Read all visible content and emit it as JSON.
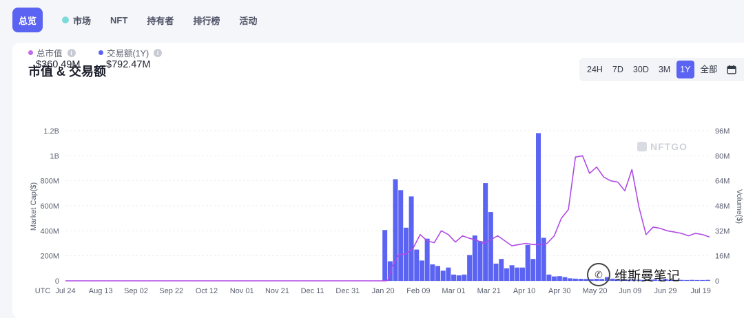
{
  "nav": {
    "items": [
      "总览",
      "市场",
      "NFT",
      "持有者",
      "排行榜",
      "活动"
    ],
    "active_index": 0
  },
  "card": {
    "title": "市值 & 交易额",
    "ranges": [
      "24H",
      "7D",
      "30D",
      "3M",
      "1Y",
      "全部"
    ],
    "active_range": "1Y"
  },
  "legend": {
    "market_cap_label": "总市值",
    "market_cap_value": "$360.49M",
    "volume_label": "交易额(1Y)",
    "volume_value": "$792.47M"
  },
  "watermark": {
    "brand": "NFTGO",
    "author": "维斯曼笔记"
  },
  "colors": {
    "accent": "#5b63f2",
    "market_cap_line": "#b04ae6",
    "volume_bar": "#5b63f2",
    "dot_market": "#c46be6",
    "dot_volume": "#5b63f2"
  },
  "chart_data": {
    "type": "bar",
    "x_axis_start_label": "UTC",
    "x_ticks": [
      "Jul 24",
      "Aug 13",
      "Sep 02",
      "Sep 22",
      "Oct 12",
      "Nov 01",
      "Nov 21",
      "Dec 11",
      "Dec 31",
      "Jan 20",
      "Feb 09",
      "Mar 01",
      "Mar 21",
      "Apr 10",
      "Apr 30",
      "May 20",
      "Jun 09",
      "Jun 29",
      "Jul 19"
    ],
    "ylabel_left": "Market Cap($)",
    "ylabel_right": "Volume($)",
    "ylim_left": [
      0,
      1200000000
    ],
    "ylim_right": [
      0,
      96000000
    ],
    "yticks_left": [
      "0",
      "200M",
      "400M",
      "600M",
      "800M",
      "1B",
      "1.2B"
    ],
    "yticks_right": [
      "0",
      "16M",
      "32M",
      "48M",
      "64M",
      "80M",
      "96M"
    ],
    "grid": true,
    "series": [
      {
        "name": "Market Cap",
        "kind": "line",
        "axis": "left",
        "values": [
          [
            0,
            0
          ],
          [
            1,
            0
          ],
          [
            2,
            0
          ],
          [
            3,
            0
          ],
          [
            4,
            0
          ],
          [
            5,
            0
          ],
          [
            6,
            0
          ],
          [
            7,
            0
          ],
          [
            8,
            0
          ],
          [
            9,
            0
          ],
          [
            10,
            0
          ],
          [
            11,
            0
          ],
          [
            12,
            0
          ],
          [
            13,
            0
          ],
          [
            14,
            0
          ],
          [
            15,
            0
          ],
          [
            16,
            0
          ],
          [
            17,
            0
          ],
          [
            18,
            0
          ],
          [
            19,
            0
          ],
          [
            20,
            0
          ],
          [
            21,
            0
          ],
          [
            22,
            0
          ],
          [
            23,
            0
          ],
          [
            24,
            0
          ],
          [
            25,
            0
          ],
          [
            26,
            0
          ],
          [
            27,
            0
          ],
          [
            28,
            0
          ],
          [
            29,
            0
          ],
          [
            30,
            0
          ],
          [
            31,
            0
          ],
          [
            32,
            0
          ],
          [
            33,
            0
          ],
          [
            34,
            0
          ],
          [
            35,
            0
          ],
          [
            36,
            0
          ],
          [
            37,
            0
          ],
          [
            38,
            0
          ],
          [
            39,
            0
          ],
          [
            40,
            0
          ],
          [
            41,
            0
          ],
          [
            42,
            0
          ],
          [
            43,
            0
          ],
          [
            44,
            0
          ],
          [
            45,
            0
          ],
          [
            46,
            0
          ],
          [
            47,
            0
          ],
          [
            48,
            0
          ],
          [
            49,
            0
          ],
          [
            50,
            0
          ],
          [
            51,
            0
          ],
          [
            52,
            0
          ],
          [
            53,
            0
          ],
          [
            54,
            0
          ],
          [
            55,
            0
          ],
          [
            56,
            0
          ],
          [
            57,
            0
          ],
          [
            58,
            0
          ],
          [
            59,
            0
          ],
          [
            60,
            0
          ],
          [
            61,
            0
          ],
          [
            62,
            0
          ],
          [
            63,
            0
          ],
          [
            64,
            0
          ],
          [
            65,
            0
          ],
          [
            66,
            0
          ],
          [
            67,
            0
          ],
          [
            68,
            0
          ],
          [
            69,
            0
          ],
          [
            70,
            0
          ],
          [
            71,
            0
          ],
          [
            72,
            0
          ],
          [
            73,
            0
          ],
          [
            74,
            0
          ],
          [
            75,
            0
          ],
          [
            76,
            0
          ],
          [
            77,
            0
          ],
          [
            78,
            0
          ],
          [
            79,
            0
          ],
          [
            80,
            0
          ],
          [
            81,
            0
          ],
          [
            82,
            0
          ],
          [
            83,
            0
          ],
          [
            84,
            0
          ],
          [
            85,
            0
          ],
          [
            86,
            0
          ],
          [
            87,
            0
          ],
          [
            88,
            0
          ],
          [
            89,
            0
          ],
          [
            90,
            0
          ],
          [
            91,
            0
          ],
          [
            92,
            0
          ],
          [
            93,
            0
          ],
          [
            94,
            0
          ],
          [
            95,
            0
          ],
          [
            96,
            0
          ],
          [
            97,
            0
          ],
          [
            98,
            0
          ],
          [
            99,
            0
          ],
          [
            100,
            0
          ],
          [
            101,
            0
          ],
          [
            102,
            0
          ],
          [
            103,
            0
          ],
          [
            104,
            0
          ],
          [
            105,
            0
          ],
          [
            106,
            0
          ],
          [
            107,
            0
          ],
          [
            108,
            0
          ],
          [
            109,
            0
          ],
          [
            110,
            0
          ],
          [
            111,
            0
          ],
          [
            112,
            0
          ],
          [
            113,
            0
          ],
          [
            114,
            0
          ],
          [
            115,
            0
          ],
          [
            116,
            0
          ],
          [
            117,
            0
          ],
          [
            118,
            0
          ],
          [
            119,
            0
          ],
          [
            120,
            0
          ],
          [
            121,
            0
          ],
          [
            122,
            0
          ],
          [
            123,
            0
          ],
          [
            124,
            0
          ],
          [
            125,
            0
          ],
          [
            126,
            0
          ],
          [
            127,
            0
          ],
          [
            128,
            0
          ],
          [
            129,
            0
          ],
          [
            130,
            0
          ],
          [
            131,
            0
          ],
          [
            132,
            0
          ],
          [
            133,
            0
          ],
          [
            134,
            0
          ],
          [
            135,
            0
          ],
          [
            136,
            0
          ],
          [
            137,
            0
          ],
          [
            138,
            0
          ],
          [
            139,
            0
          ],
          [
            140,
            0
          ],
          [
            141,
            0
          ],
          [
            142,
            0
          ],
          [
            143,
            0
          ],
          [
            144,
            0
          ],
          [
            145,
            0
          ],
          [
            146,
            0
          ],
          [
            147,
            0
          ],
          [
            148,
            0
          ],
          [
            149,
            0
          ],
          [
            150,
            0
          ],
          [
            151,
            0
          ],
          [
            152,
            0
          ],
          [
            153,
            0
          ],
          [
            154,
            0
          ],
          [
            155,
            0
          ],
          [
            156,
            0
          ],
          [
            157,
            0
          ],
          [
            158,
            0
          ],
          [
            159,
            0
          ],
          [
            160,
            0
          ],
          [
            161,
            0
          ],
          [
            162,
            0
          ],
          [
            163,
            0
          ],
          [
            164,
            0
          ],
          [
            165,
            0
          ],
          [
            166,
            0
          ],
          [
            167,
            0
          ],
          [
            168,
            0
          ],
          [
            169,
            0
          ],
          [
            170,
            0
          ],
          [
            171,
            0
          ],
          [
            172,
            0
          ],
          [
            173,
            0
          ],
          [
            174,
            0
          ],
          [
            175,
            0
          ],
          [
            176,
            0
          ],
          [
            177,
            0
          ],
          [
            178,
            0
          ],
          [
            179,
            0
          ],
          [
            180,
            0
          ],
          [
            181,
            0
          ],
          [
            182,
            0
          ],
          [
            183,
            10000000
          ],
          [
            185,
            110000000
          ],
          [
            189,
            210000000
          ],
          [
            193,
            215000000
          ],
          [
            197,
            260000000
          ],
          [
            201,
            370000000
          ],
          [
            205,
            320000000
          ],
          [
            209,
            305000000
          ],
          [
            213,
            400000000
          ],
          [
            217,
            370000000
          ],
          [
            221,
            310000000
          ],
          [
            225,
            360000000
          ],
          [
            229,
            340000000
          ],
          [
            233,
            325000000
          ],
          [
            237,
            300000000
          ],
          [
            241,
            330000000
          ],
          [
            245,
            360000000
          ],
          [
            249,
            320000000
          ],
          [
            253,
            280000000
          ],
          [
            257,
            290000000
          ],
          [
            261,
            300000000
          ],
          [
            265,
            290000000
          ],
          [
            269,
            290000000
          ],
          [
            273,
            300000000
          ],
          [
            277,
            360000000
          ],
          [
            281,
            500000000
          ],
          [
            285,
            570000000
          ],
          [
            289,
            990000000
          ],
          [
            293,
            1000000000
          ],
          [
            297,
            860000000
          ],
          [
            301,
            910000000
          ],
          [
            305,
            830000000
          ],
          [
            309,
            800000000
          ],
          [
            313,
            790000000
          ],
          [
            317,
            720000000
          ],
          [
            321,
            890000000
          ],
          [
            325,
            590000000
          ],
          [
            329,
            370000000
          ],
          [
            333,
            430000000
          ],
          [
            337,
            420000000
          ],
          [
            341,
            400000000
          ],
          [
            345,
            390000000
          ],
          [
            349,
            380000000
          ],
          [
            353,
            360000000
          ],
          [
            357,
            380000000
          ],
          [
            361,
            370000000
          ],
          [
            365,
            350000000
          ]
        ]
      },
      {
        "name": "Volume",
        "kind": "bar",
        "axis": "right",
        "values": [
          [
            181,
            32500000
          ],
          [
            184,
            12500000
          ],
          [
            187,
            65000000
          ],
          [
            190,
            58000000
          ],
          [
            193,
            34000000
          ],
          [
            196,
            54000000
          ],
          [
            199,
            20000000
          ],
          [
            202,
            13000000
          ],
          [
            205,
            27000000
          ],
          [
            208,
            10500000
          ],
          [
            211,
            9500000
          ],
          [
            214,
            6500000
          ],
          [
            217,
            8500000
          ],
          [
            220,
            4000000
          ],
          [
            223,
            3500000
          ],
          [
            226,
            4000000
          ],
          [
            229,
            16500000
          ],
          [
            232,
            29000000
          ],
          [
            235,
            25500000
          ],
          [
            238,
            62500000
          ],
          [
            241,
            44000000
          ],
          [
            244,
            11000000
          ],
          [
            247,
            14000000
          ],
          [
            250,
            8000000
          ],
          [
            253,
            10000000
          ],
          [
            256,
            8500000
          ],
          [
            259,
            8500000
          ],
          [
            262,
            23000000
          ],
          [
            265,
            14000000
          ],
          [
            268,
            94500000
          ],
          [
            271,
            27500000
          ],
          [
            274,
            4000000
          ],
          [
            277,
            2800000
          ],
          [
            280,
            3000000
          ],
          [
            283,
            2400000
          ],
          [
            286,
            1600000
          ],
          [
            289,
            1400000
          ],
          [
            292,
            1300000
          ],
          [
            295,
            1200000
          ],
          [
            298,
            1100000
          ],
          [
            301,
            1300000
          ],
          [
            304,
            1200000
          ],
          [
            307,
            2400000
          ],
          [
            310,
            1400000
          ],
          [
            313,
            1000000
          ],
          [
            316,
            1000000
          ],
          [
            319,
            800000
          ],
          [
            322,
            900000
          ],
          [
            325,
            700000
          ],
          [
            328,
            600000
          ],
          [
            331,
            800000
          ],
          [
            334,
            800000
          ],
          [
            337,
            700000
          ],
          [
            340,
            1200000
          ],
          [
            343,
            600000
          ],
          [
            346,
            600000
          ],
          [
            349,
            600000
          ],
          [
            352,
            500000
          ],
          [
            355,
            600000
          ],
          [
            358,
            500000
          ],
          [
            361,
            500000
          ],
          [
            364,
            600000
          ]
        ]
      }
    ]
  }
}
